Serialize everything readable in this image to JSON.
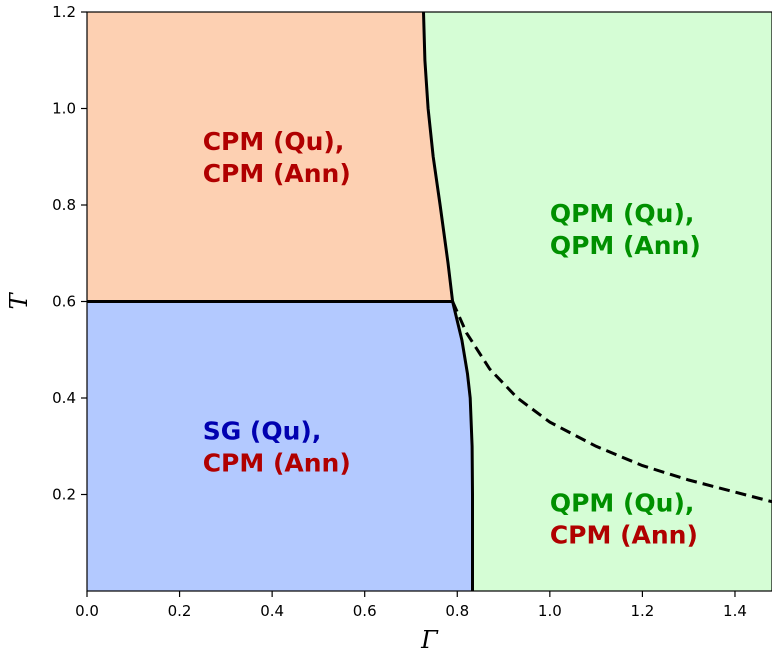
{
  "chart_data": {
    "type": "area",
    "title": "",
    "xlabel": "Γ",
    "ylabel": "T",
    "xlim": [
      0.0,
      1.48
    ],
    "ylim": [
      0.0,
      1.2
    ],
    "x_ticks": [
      "0.0",
      "0.2",
      "0.4",
      "0.6",
      "0.8",
      "1.0",
      "1.2",
      "1.4"
    ],
    "y_ticks": [
      "0.2",
      "0.4",
      "0.6",
      "0.8",
      "1.0",
      "1.2"
    ],
    "grid": false,
    "colors": {
      "cpm_region": "#fdd0b2",
      "sg_region": "#b3c9ff",
      "qpm_region": "#d5fdd5",
      "red_text": "#b00000",
      "blue_text": "#0000b0",
      "green_text": "#009000",
      "boundary": "#000000"
    },
    "boundaries": {
      "horizontal_line": {
        "T": 0.6,
        "gamma_range": [
          0.0,
          0.79
        ]
      },
      "upper_curve": [
        [
          0.727,
          1.2
        ],
        [
          0.73,
          1.1
        ],
        [
          0.737,
          1.0
        ],
        [
          0.748,
          0.9
        ],
        [
          0.763,
          0.8
        ],
        [
          0.78,
          0.68
        ],
        [
          0.79,
          0.6
        ]
      ],
      "lower_curve": [
        [
          0.79,
          0.6
        ],
        [
          0.81,
          0.52
        ],
        [
          0.822,
          0.45
        ],
        [
          0.828,
          0.4
        ],
        [
          0.832,
          0.3
        ],
        [
          0.833,
          0.2
        ],
        [
          0.833,
          0.1
        ],
        [
          0.833,
          0.0
        ]
      ],
      "dashed_curve": [
        [
          0.79,
          0.6
        ],
        [
          0.82,
          0.535
        ],
        [
          0.87,
          0.46
        ],
        [
          0.93,
          0.4
        ],
        [
          1.0,
          0.35
        ],
        [
          1.1,
          0.3
        ],
        [
          1.2,
          0.26
        ],
        [
          1.3,
          0.23
        ],
        [
          1.4,
          0.205
        ],
        [
          1.48,
          0.185
        ]
      ]
    },
    "regions": [
      {
        "lines": [
          {
            "text": "CPM (Qu),",
            "color": "red"
          },
          {
            "text": "CPM (Ann)",
            "color": "red"
          }
        ],
        "anchor": [
          0.25,
          0.9
        ]
      },
      {
        "lines": [
          {
            "text": "SG (Qu),",
            "color": "blue"
          },
          {
            "text": "CPM (Ann)",
            "color": "red"
          }
        ],
        "anchor": [
          0.25,
          0.3
        ]
      },
      {
        "lines": [
          {
            "text": "QPM (Qu),",
            "color": "green"
          },
          {
            "text": "QPM (Ann)",
            "color": "green"
          }
        ],
        "anchor": [
          1.0,
          0.75
        ]
      },
      {
        "lines": [
          {
            "text": "QPM (Qu),",
            "color": "green"
          },
          {
            "text": "CPM (Ann)",
            "color": "red"
          }
        ],
        "anchor": [
          1.0,
          0.15
        ]
      }
    ]
  }
}
